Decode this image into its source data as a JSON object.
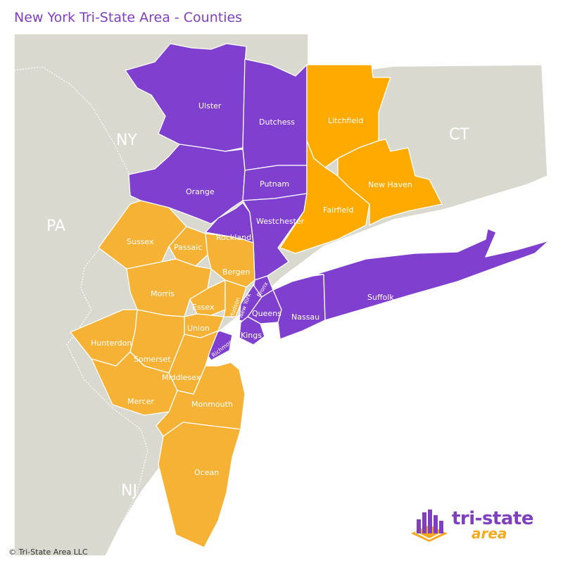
{
  "title": "New York Tri-State Area - Counties",
  "copyright": "© Tri-State Area LLC",
  "logo": {
    "line1": "tri-state",
    "line2": "area"
  },
  "colors": {
    "new_york": "#8040cf",
    "new_jersey": "#f5b234",
    "connecticut": "#ffaa00",
    "background_land": "#d9d9cf",
    "title": "#7f3fbf"
  },
  "states": {
    "ny": "NY",
    "pa": "PA",
    "ct": "CT",
    "nj": "NJ"
  },
  "counties": {
    "ulster": "Ulster",
    "dutchess": "Dutchess",
    "orange": "Orange",
    "putnam": "Putnam",
    "rockland": "Rockland",
    "westchester": "Westchester",
    "bronx": "Bronx",
    "new_york": "New York",
    "queens": "Queens",
    "kings": "Kings",
    "richmond": "Richmond",
    "nassau": "Nassau",
    "suffolk": "Suffolk",
    "litchfield": "Litchfield",
    "fairfield": "Fairfield",
    "new_haven": "New Haven",
    "sussex": "Sussex",
    "passaic": "Passaic",
    "bergen": "Bergen",
    "morris": "Morris",
    "essex": "Essex",
    "hudson": "Hudson",
    "union": "Union",
    "hunterdon": "Hunterdon",
    "somerset": "Somerset",
    "middlesex": "Middlesex",
    "mercer": "Mercer",
    "monmouth": "Monmouth",
    "ocean": "Ocean"
  }
}
